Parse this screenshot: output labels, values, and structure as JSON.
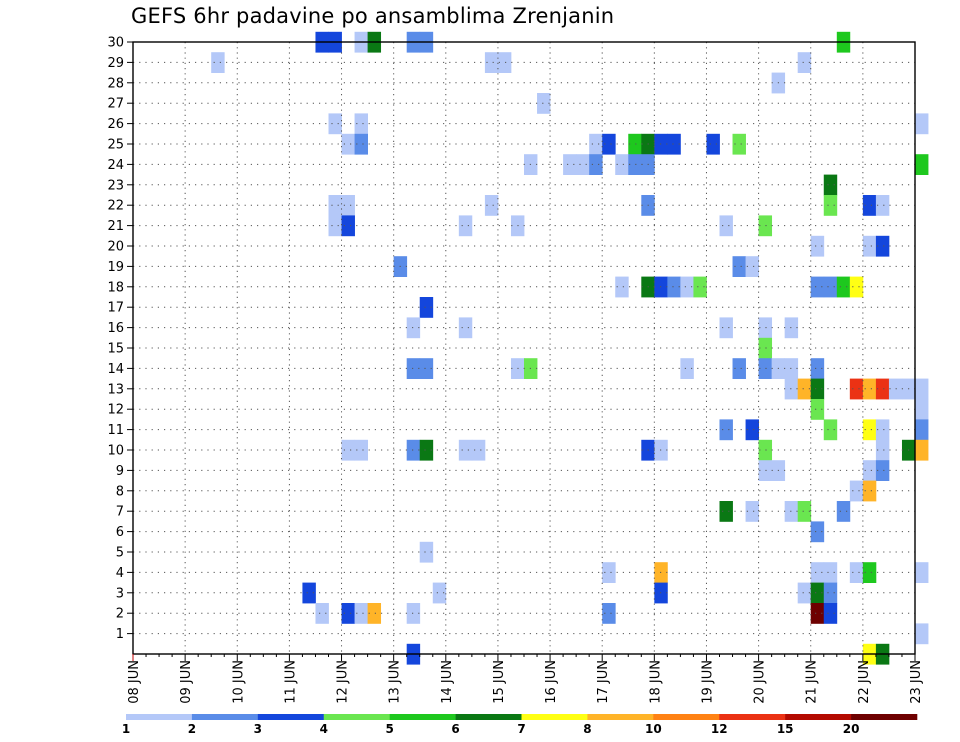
{
  "title": "GEFS 6hr padavine po ansamblima Zrenjanin",
  "chart_data": {
    "type": "heatmap",
    "title": "GEFS 6hr padavine po ansamblima Zrenjanin",
    "x_tick_labels": [
      "08 JUN",
      "09 JUN",
      "10 JUN",
      "11 JUN",
      "12 JUN",
      "13 JUN",
      "14 JUN",
      "15 JUN",
      "16 JUN",
      "17 JUN",
      "18 JUN",
      "19 JUN",
      "20 JUN",
      "21 JUN",
      "22 JUN",
      "23 JUN"
    ],
    "y_tick_labels": [
      "1",
      "2",
      "3",
      "4",
      "5",
      "6",
      "7",
      "8",
      "9",
      "10",
      "11",
      "12",
      "13",
      "14",
      "15",
      "16",
      "17",
      "18",
      "19",
      "20",
      "21",
      "22",
      "23",
      "24",
      "25",
      "26",
      "27",
      "28",
      "29",
      "30"
    ],
    "time_step_hours": 6,
    "grid": true,
    "colorbar": {
      "position": "bottom",
      "labels": [
        "1",
        "2",
        "3",
        "4",
        "5",
        "6",
        "7",
        "8",
        "10",
        "12",
        "15",
        "20"
      ],
      "bins": [
        {
          "min": 1,
          "max": 2,
          "color": "#b4c8f8"
        },
        {
          "min": 2,
          "max": 3,
          "color": "#5a8ce8"
        },
        {
          "min": 3,
          "max": 4,
          "color": "#1446dc"
        },
        {
          "min": 4,
          "max": 5,
          "color": "#6ae650"
        },
        {
          "min": 5,
          "max": 6,
          "color": "#1ec81e"
        },
        {
          "min": 6,
          "max": 7,
          "color": "#0a7814"
        },
        {
          "min": 7,
          "max": 8,
          "color": "#ffff14"
        },
        {
          "min": 8,
          "max": 10,
          "color": "#ffb428"
        },
        {
          "min": 10,
          "max": 12,
          "color": "#ff8214"
        },
        {
          "min": 12,
          "max": 15,
          "color": "#eb3214"
        },
        {
          "min": 15,
          "max": 20,
          "color": "#b40a00"
        },
        {
          "min": 20,
          "max": null,
          "color": "#6e0000"
        }
      ]
    },
    "cells_note": "each cell: [time step index from 08 JUN 00 (6-hour steps), ensemble member, precipitation bin lower bound]",
    "cells": [
      [
        14,
        30,
        3
      ],
      [
        15,
        30,
        3
      ],
      [
        17,
        30,
        1
      ],
      [
        18,
        30,
        6
      ],
      [
        21,
        30,
        2
      ],
      [
        22,
        30,
        2
      ],
      [
        54,
        30,
        5
      ],
      [
        6,
        29,
        1
      ],
      [
        27,
        29,
        1
      ],
      [
        28,
        29,
        1
      ],
      [
        51,
        29,
        1
      ],
      [
        49,
        28,
        1
      ],
      [
        31,
        27,
        1
      ],
      [
        15,
        26,
        1
      ],
      [
        17,
        26,
        1
      ],
      [
        60,
        26,
        1
      ],
      [
        16,
        25,
        1
      ],
      [
        17,
        25,
        2
      ],
      [
        35,
        25,
        1
      ],
      [
        36,
        25,
        3
      ],
      [
        38,
        25,
        5
      ],
      [
        39,
        25,
        6
      ],
      [
        40,
        25,
        3
      ],
      [
        41,
        25,
        3
      ],
      [
        44,
        25,
        3
      ],
      [
        46,
        25,
        4
      ],
      [
        30,
        24,
        1
      ],
      [
        33,
        24,
        1
      ],
      [
        34,
        24,
        1
      ],
      [
        35,
        24,
        2
      ],
      [
        37,
        24,
        1
      ],
      [
        38,
        24,
        2
      ],
      [
        39,
        24,
        2
      ],
      [
        60,
        24,
        5
      ],
      [
        53,
        23,
        6
      ],
      [
        15,
        22,
        1
      ],
      [
        16,
        22,
        1
      ],
      [
        27,
        22,
        1
      ],
      [
        39,
        22,
        2
      ],
      [
        53,
        22,
        4
      ],
      [
        56,
        22,
        3
      ],
      [
        57,
        22,
        1
      ],
      [
        15,
        21,
        1
      ],
      [
        16,
        21,
        3
      ],
      [
        25,
        21,
        1
      ],
      [
        29,
        21,
        1
      ],
      [
        45,
        21,
        1
      ],
      [
        48,
        21,
        4
      ],
      [
        52,
        20,
        1
      ],
      [
        56,
        20,
        1
      ],
      [
        57,
        20,
        3
      ],
      [
        20,
        19,
        2
      ],
      [
        46,
        19,
        2
      ],
      [
        47,
        19,
        1
      ],
      [
        37,
        18,
        1
      ],
      [
        39,
        18,
        6
      ],
      [
        40,
        18,
        3
      ],
      [
        41,
        18,
        2
      ],
      [
        42,
        18,
        1
      ],
      [
        43,
        18,
        4
      ],
      [
        52,
        18,
        2
      ],
      [
        53,
        18,
        2
      ],
      [
        54,
        18,
        5
      ],
      [
        55,
        18,
        7
      ],
      [
        22,
        17,
        3
      ],
      [
        21,
        16,
        1
      ],
      [
        25,
        16,
        1
      ],
      [
        45,
        16,
        1
      ],
      [
        48,
        16,
        1
      ],
      [
        50,
        16,
        1
      ],
      [
        48,
        15,
        4
      ],
      [
        21,
        14,
        2
      ],
      [
        22,
        14,
        2
      ],
      [
        29,
        14,
        1
      ],
      [
        30,
        14,
        4
      ],
      [
        42,
        14,
        1
      ],
      [
        46,
        14,
        2
      ],
      [
        48,
        14,
        2
      ],
      [
        49,
        14,
        1
      ],
      [
        50,
        14,
        1
      ],
      [
        52,
        14,
        2
      ],
      [
        50,
        13,
        1
      ],
      [
        51,
        13,
        8
      ],
      [
        52,
        13,
        6
      ],
      [
        55,
        13,
        12
      ],
      [
        56,
        13,
        8
      ],
      [
        57,
        13,
        12
      ],
      [
        58,
        13,
        1
      ],
      [
        59,
        13,
        1
      ],
      [
        60,
        13,
        1
      ],
      [
        52,
        12,
        4
      ],
      [
        60,
        12,
        1
      ],
      [
        45,
        11,
        2
      ],
      [
        47,
        11,
        3
      ],
      [
        53,
        11,
        4
      ],
      [
        56,
        11,
        7
      ],
      [
        57,
        11,
        1
      ],
      [
        60,
        11,
        2
      ],
      [
        16,
        10,
        1
      ],
      [
        17,
        10,
        1
      ],
      [
        21,
        10,
        2
      ],
      [
        22,
        10,
        6
      ],
      [
        25,
        10,
        1
      ],
      [
        26,
        10,
        1
      ],
      [
        39,
        10,
        3
      ],
      [
        40,
        10,
        1
      ],
      [
        48,
        10,
        4
      ],
      [
        57,
        10,
        1
      ],
      [
        59,
        10,
        6
      ],
      [
        60,
        10,
        8
      ],
      [
        48,
        9,
        1
      ],
      [
        49,
        9,
        1
      ],
      [
        56,
        9,
        1
      ],
      [
        57,
        9,
        2
      ],
      [
        55,
        8,
        1
      ],
      [
        56,
        8,
        8
      ],
      [
        45,
        7,
        6
      ],
      [
        47,
        7,
        1
      ],
      [
        50,
        7,
        1
      ],
      [
        51,
        7,
        4
      ],
      [
        54,
        7,
        2
      ],
      [
        52,
        6,
        2
      ],
      [
        22,
        5,
        1
      ],
      [
        36,
        4,
        1
      ],
      [
        40,
        4,
        8
      ],
      [
        52,
        4,
        1
      ],
      [
        53,
        4,
        1
      ],
      [
        55,
        4,
        1
      ],
      [
        56,
        4,
        5
      ],
      [
        60,
        4,
        1
      ],
      [
        13,
        3,
        3
      ],
      [
        23,
        3,
        1
      ],
      [
        40,
        3,
        3
      ],
      [
        51,
        3,
        1
      ],
      [
        52,
        3,
        6
      ],
      [
        53,
        3,
        2
      ],
      [
        14,
        2,
        1
      ],
      [
        16,
        2,
        3
      ],
      [
        17,
        2,
        1
      ],
      [
        18,
        2,
        8
      ],
      [
        21,
        2,
        1
      ],
      [
        36,
        2,
        2
      ],
      [
        52,
        2,
        20
      ],
      [
        53,
        2,
        3
      ],
      [
        60,
        1,
        1
      ],
      [
        21,
        0,
        3
      ],
      [
        56,
        0,
        7
      ],
      [
        57,
        0,
        6
      ]
    ]
  }
}
